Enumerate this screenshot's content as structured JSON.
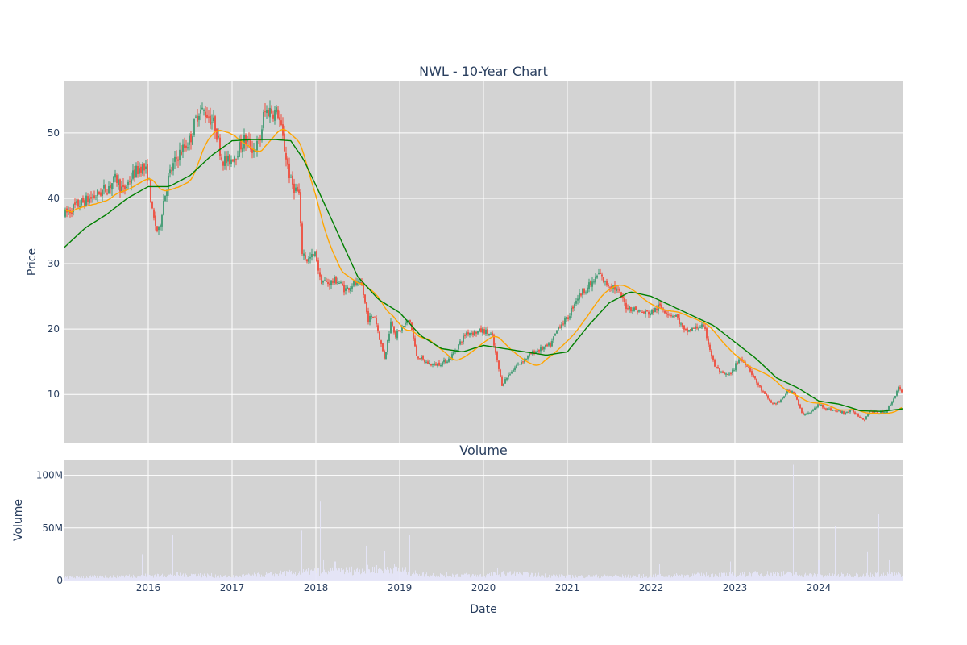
{
  "chart_data": [
    {
      "type": "candlestick",
      "title": "NWL - 10-Year Chart",
      "ylabel": "Price",
      "xlabel": "",
      "ylim": [
        2.5,
        58
      ],
      "xlim": [
        2015.0,
        2025.0
      ],
      "grid": true,
      "background": "#d3d3d3",
      "x_ticks": [
        "2016",
        "2017",
        "2018",
        "2019",
        "2020",
        "2021",
        "2022",
        "2023",
        "2024"
      ],
      "y_ticks": [
        10,
        20,
        30,
        40,
        50
      ],
      "colors": {
        "up": "#3d9970",
        "down": "#ef4b3b",
        "ma_short": "#ffa500",
        "ma_long": "#008000"
      },
      "close_anchors": [
        [
          2015.0,
          37.5
        ],
        [
          2015.1,
          38.5
        ],
        [
          2015.2,
          39.3
        ],
        [
          2015.35,
          40.2
        ],
        [
          2015.5,
          41.5
        ],
        [
          2015.62,
          43.0
        ],
        [
          2015.7,
          41.0
        ],
        [
          2015.8,
          43.3
        ],
        [
          2015.92,
          45.0
        ],
        [
          2016.0,
          43.5
        ],
        [
          2016.05,
          37.5
        ],
        [
          2016.12,
          34.5
        ],
        [
          2016.18,
          39.5
        ],
        [
          2016.25,
          43.5
        ],
        [
          2016.35,
          46.5
        ],
        [
          2016.5,
          49.0
        ],
        [
          2016.6,
          53.5
        ],
        [
          2016.7,
          53.0
        ],
        [
          2016.8,
          51.0
        ],
        [
          2016.88,
          46.0
        ],
        [
          2016.95,
          45.5
        ],
        [
          2017.05,
          47.0
        ],
        [
          2017.15,
          49.0
        ],
        [
          2017.25,
          47.5
        ],
        [
          2017.33,
          48.5
        ],
        [
          2017.38,
          53.0
        ],
        [
          2017.45,
          53.5
        ],
        [
          2017.55,
          53.0
        ],
        [
          2017.62,
          48.0
        ],
        [
          2017.7,
          42.5
        ],
        [
          2017.8,
          40.5
        ],
        [
          2017.83,
          32.0
        ],
        [
          2017.9,
          30.5
        ],
        [
          2018.0,
          31.5
        ],
        [
          2018.05,
          27.5
        ],
        [
          2018.15,
          27.0
        ],
        [
          2018.25,
          27.5
        ],
        [
          2018.35,
          26.0
        ],
        [
          2018.45,
          27.0
        ],
        [
          2018.55,
          26.5
        ],
        [
          2018.62,
          21.5
        ],
        [
          2018.7,
          22.0
        ],
        [
          2018.78,
          17.5
        ],
        [
          2018.82,
          15.5
        ],
        [
          2018.9,
          21.5
        ],
        [
          2018.95,
          19.0
        ],
        [
          2019.05,
          20.5
        ],
        [
          2019.12,
          21.5
        ],
        [
          2019.2,
          16.0
        ],
        [
          2019.3,
          15.0
        ],
        [
          2019.4,
          14.5
        ],
        [
          2019.5,
          14.8
        ],
        [
          2019.6,
          15.5
        ],
        [
          2019.7,
          17.5
        ],
        [
          2019.8,
          19.5
        ],
        [
          2019.9,
          19.5
        ],
        [
          2020.0,
          19.8
        ],
        [
          2020.1,
          19.0
        ],
        [
          2020.18,
          14.0
        ],
        [
          2020.22,
          11.5
        ],
        [
          2020.3,
          13.0
        ],
        [
          2020.4,
          14.5
        ],
        [
          2020.5,
          15.5
        ],
        [
          2020.6,
          16.5
        ],
        [
          2020.7,
          17.0
        ],
        [
          2020.8,
          17.5
        ],
        [
          2020.9,
          20.5
        ],
        [
          2021.0,
          21.5
        ],
        [
          2021.1,
          24.5
        ],
        [
          2021.2,
          26.0
        ],
        [
          2021.3,
          27.0
        ],
        [
          2021.38,
          28.5
        ],
        [
          2021.45,
          27.0
        ],
        [
          2021.55,
          26.5
        ],
        [
          2021.62,
          25.5
        ],
        [
          2021.7,
          23.5
        ],
        [
          2021.8,
          23.0
        ],
        [
          2021.9,
          22.5
        ],
        [
          2022.0,
          22.5
        ],
        [
          2022.1,
          23.5
        ],
        [
          2022.2,
          22.5
        ],
        [
          2022.3,
          22.0
        ],
        [
          2022.4,
          19.5
        ],
        [
          2022.5,
          20.0
        ],
        [
          2022.6,
          20.5
        ],
        [
          2022.65,
          19.5
        ],
        [
          2022.75,
          14.5
        ],
        [
          2022.85,
          13.0
        ],
        [
          2022.95,
          13.0
        ],
        [
          2023.05,
          15.5
        ],
        [
          2023.15,
          14.5
        ],
        [
          2023.25,
          12.0
        ],
        [
          2023.35,
          10.0
        ],
        [
          2023.45,
          8.5
        ],
        [
          2023.55,
          9.0
        ],
        [
          2023.62,
          10.5
        ],
        [
          2023.7,
          10.5
        ],
        [
          2023.8,
          7.0
        ],
        [
          2023.9,
          7.2
        ],
        [
          2024.0,
          8.5
        ],
        [
          2024.1,
          7.8
        ],
        [
          2024.2,
          7.5
        ],
        [
          2024.3,
          7.2
        ],
        [
          2024.4,
          7.5
        ],
        [
          2024.5,
          6.5
        ],
        [
          2024.55,
          6.2
        ],
        [
          2024.6,
          7.5
        ],
        [
          2024.7,
          7.2
        ],
        [
          2024.8,
          7.4
        ],
        [
          2024.88,
          9.0
        ],
        [
          2024.95,
          11.0
        ],
        [
          2025.0,
          10.0
        ]
      ],
      "ma_long_anchors": [
        [
          2015.0,
          32.5
        ],
        [
          2015.25,
          35.5
        ],
        [
          2015.5,
          37.5
        ],
        [
          2015.75,
          40.0
        ],
        [
          2016.0,
          41.8
        ],
        [
          2016.25,
          41.8
        ],
        [
          2016.5,
          43.5
        ],
        [
          2016.75,
          46.5
        ],
        [
          2017.0,
          48.8
        ],
        [
          2017.25,
          49.0
        ],
        [
          2017.5,
          49.0
        ],
        [
          2017.7,
          48.8
        ],
        [
          2017.85,
          46.0
        ],
        [
          2018.0,
          42.0
        ],
        [
          2018.25,
          35.0
        ],
        [
          2018.5,
          28.0
        ],
        [
          2018.75,
          24.5
        ],
        [
          2019.0,
          22.5
        ],
        [
          2019.25,
          19.0
        ],
        [
          2019.5,
          17.0
        ],
        [
          2019.75,
          16.5
        ],
        [
          2020.0,
          17.5
        ],
        [
          2020.25,
          17.0
        ],
        [
          2020.5,
          16.5
        ],
        [
          2020.75,
          16.0
        ],
        [
          2021.0,
          16.5
        ],
        [
          2021.25,
          20.5
        ],
        [
          2021.5,
          24.0
        ],
        [
          2021.75,
          25.7
        ],
        [
          2022.0,
          25.0
        ],
        [
          2022.25,
          23.5
        ],
        [
          2022.5,
          22.0
        ],
        [
          2022.75,
          20.5
        ],
        [
          2023.0,
          18.0
        ],
        [
          2023.25,
          15.5
        ],
        [
          2023.5,
          12.5
        ],
        [
          2023.75,
          11.0
        ],
        [
          2024.0,
          9.0
        ],
        [
          2024.25,
          8.5
        ],
        [
          2024.5,
          7.5
        ],
        [
          2024.75,
          7.4
        ],
        [
          2025.0,
          7.8
        ]
      ]
    },
    {
      "type": "bar",
      "title": "Volume",
      "ylabel": "Volume",
      "xlabel": "Date",
      "ylim": [
        0,
        115000000
      ],
      "xlim": [
        2015.0,
        2025.0
      ],
      "grid": true,
      "background": "#d3d3d3",
      "bar_color": "#e6e6fa",
      "x_ticks": [
        "2016",
        "2017",
        "2018",
        "2019",
        "2020",
        "2021",
        "2022",
        "2023",
        "2024"
      ],
      "y_ticks": [
        0,
        50000000,
        100000000
      ],
      "y_tick_labels": [
        "0",
        "50M",
        "100M"
      ],
      "baseline_anchors": [
        [
          2015.0,
          3000000
        ],
        [
          2016.0,
          5000000
        ],
        [
          2016.5,
          6000000
        ],
        [
          2017.0,
          4000000
        ],
        [
          2018.0,
          9000000
        ],
        [
          2018.5,
          10000000
        ],
        [
          2018.9,
          12000000
        ],
        [
          2019.3,
          6000000
        ],
        [
          2020.0,
          5000000
        ],
        [
          2020.3,
          7000000
        ],
        [
          2021.0,
          4000000
        ],
        [
          2022.0,
          4500000
        ],
        [
          2023.0,
          6000000
        ],
        [
          2023.5,
          7000000
        ],
        [
          2024.0,
          5000000
        ],
        [
          2025.0,
          6000000
        ]
      ],
      "spikes": [
        [
          2015.93,
          25000000
        ],
        [
          2016.29,
          43000000
        ],
        [
          2017.83,
          48000000
        ],
        [
          2018.05,
          75000000
        ],
        [
          2018.09,
          20000000
        ],
        [
          2018.23,
          18000000
        ],
        [
          2018.6,
          33000000
        ],
        [
          2018.82,
          28000000
        ],
        [
          2019.12,
          43000000
        ],
        [
          2019.55,
          20000000
        ],
        [
          2019.3,
          18000000
        ],
        [
          2020.17,
          12000000
        ],
        [
          2021.14,
          9000000
        ],
        [
          2022.1,
          16000000
        ],
        [
          2022.95,
          18000000
        ],
        [
          2023.42,
          43000000
        ],
        [
          2023.7,
          110000000
        ],
        [
          2024.0,
          20000000
        ],
        [
          2024.2,
          52000000
        ],
        [
          2024.58,
          27000000
        ],
        [
          2024.72,
          63000000
        ],
        [
          2024.84,
          20000000
        ]
      ]
    }
  ]
}
